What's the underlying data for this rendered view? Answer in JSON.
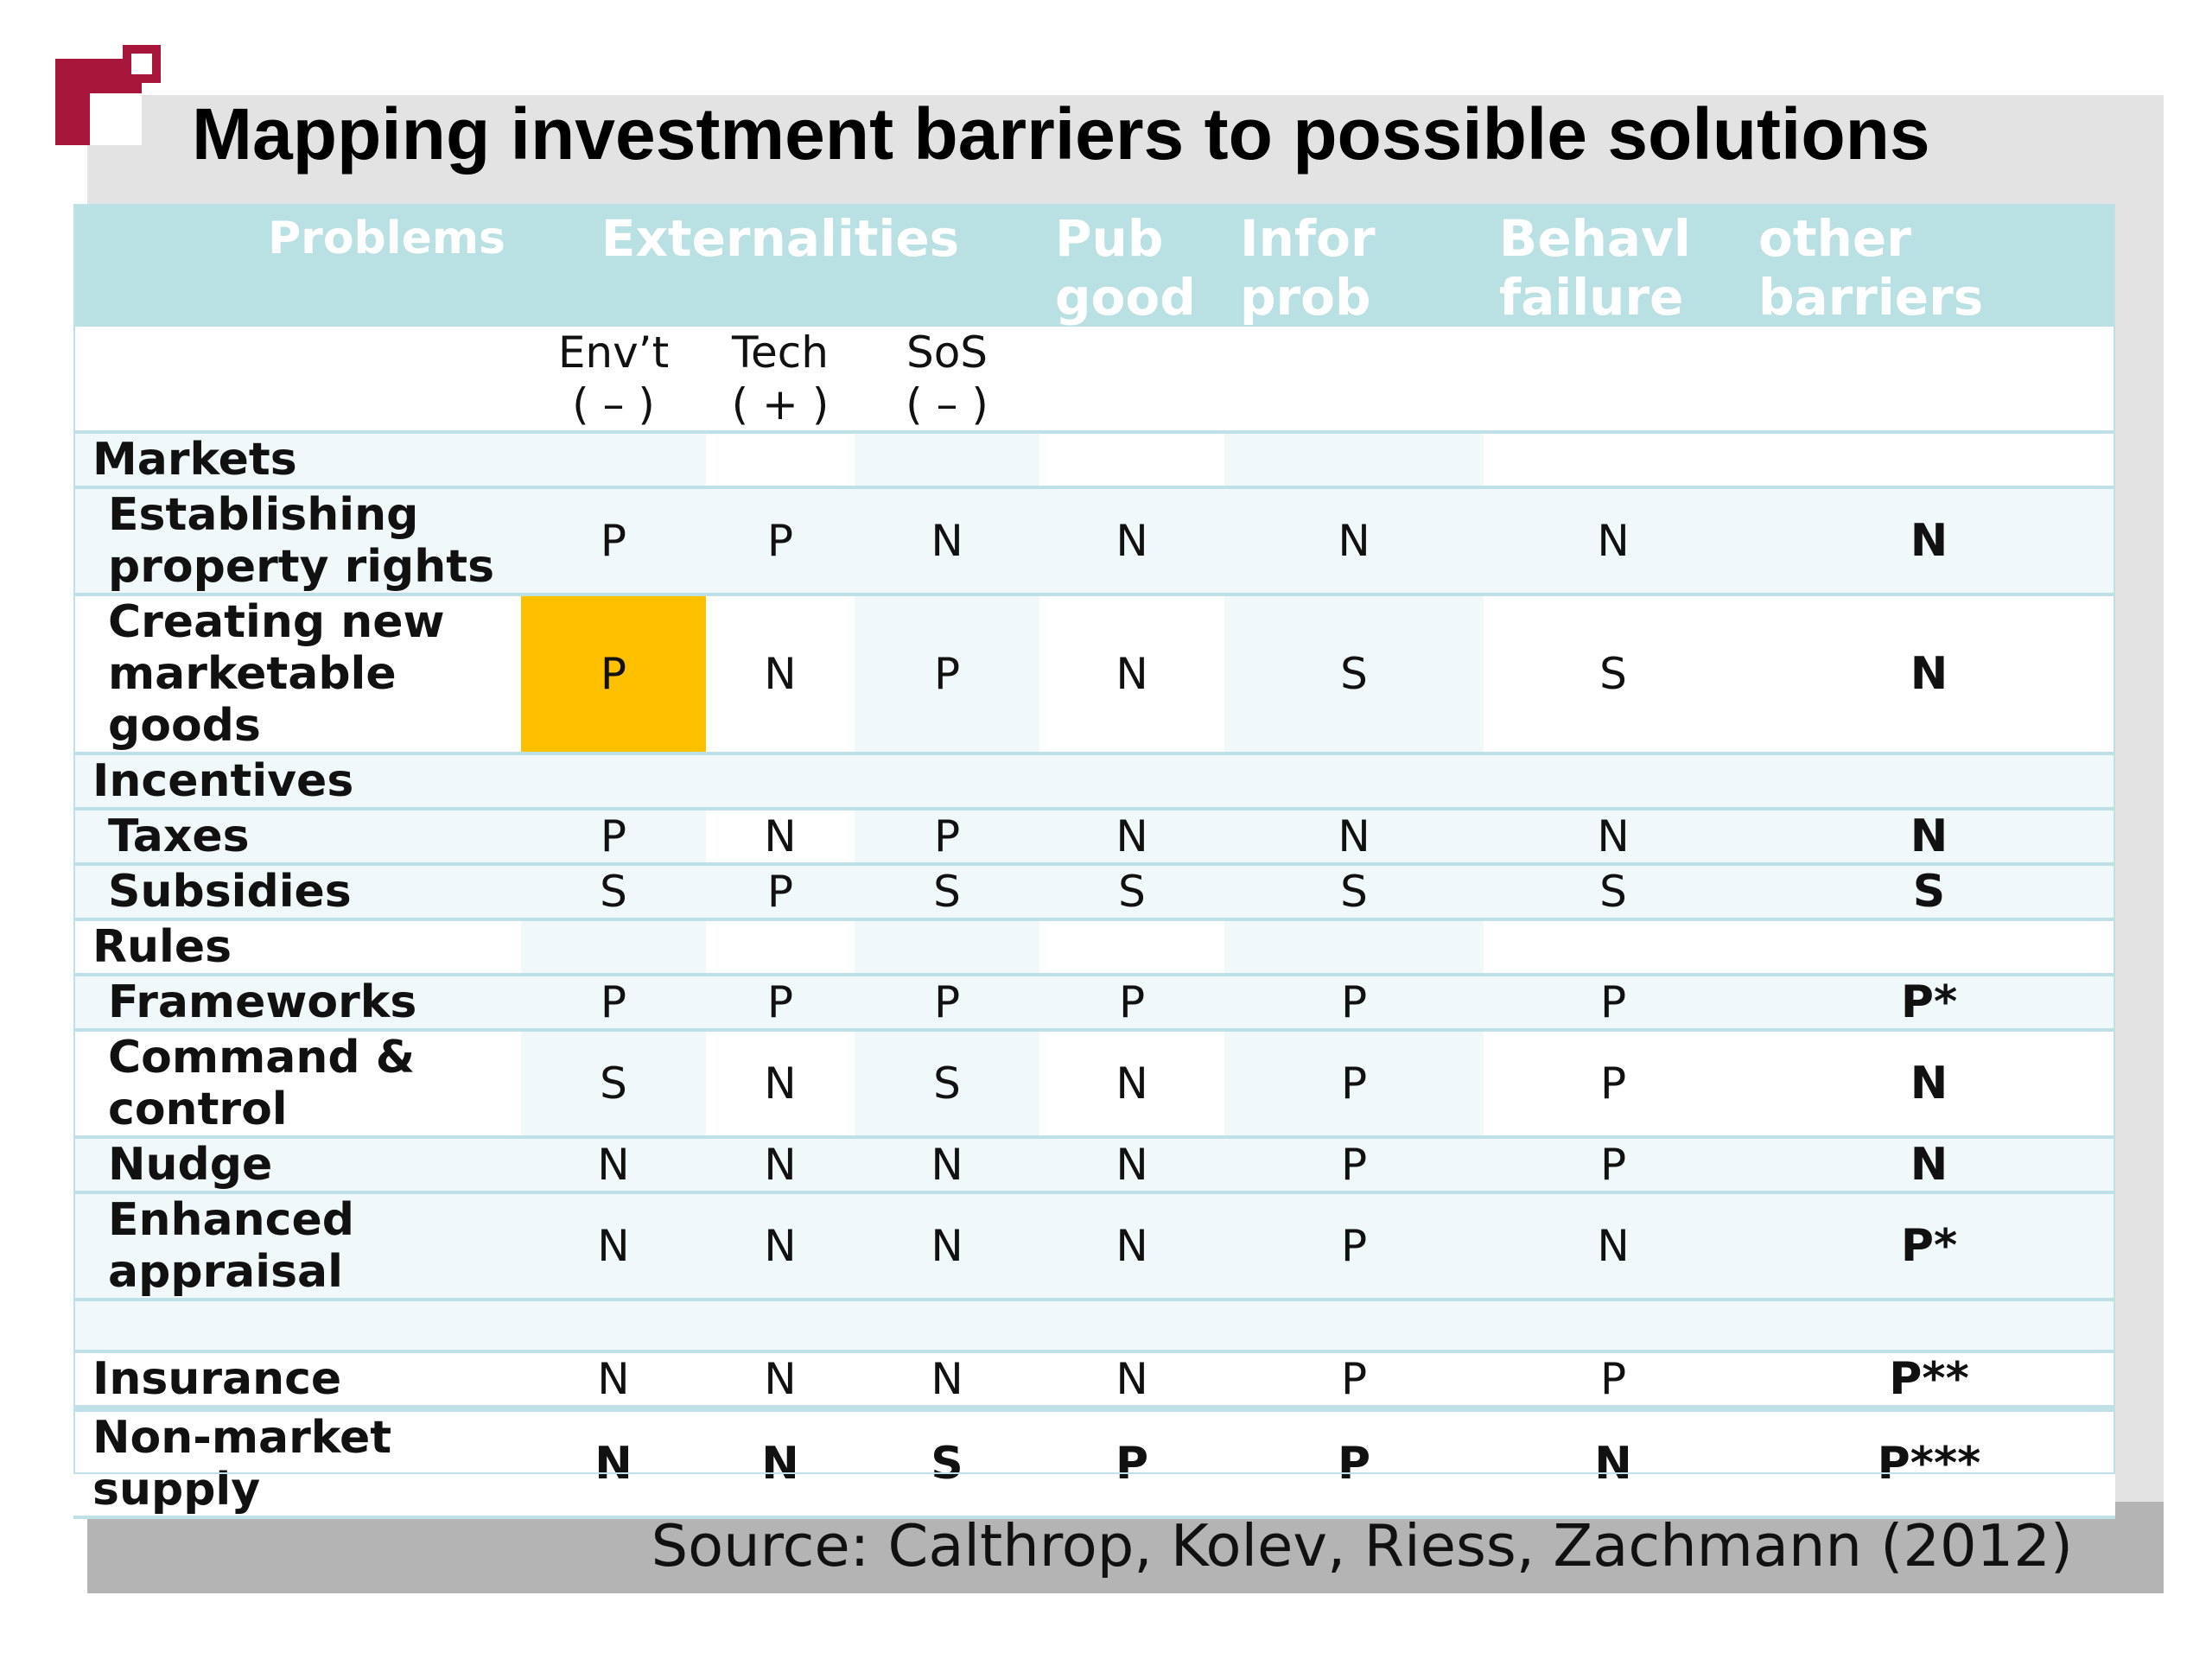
{
  "title": "Mapping investment barriers to possible solutions",
  "source": "Source: Calthrop, Kolev, Riess, Zachmann (2012)",
  "colors": {
    "logo": "#a8153a",
    "header": "#b9e0e3",
    "highlight": "#ffc000",
    "footer": "#b4b4b4"
  },
  "header": {
    "problems": "Problems",
    "externalities": "Externalities",
    "pub_good": "Pub good",
    "infor_prob": "Infor prob",
    "behavl_failure": "Behavl failure",
    "other_barriers": "other barriers"
  },
  "subheader": {
    "envt": "Env’t",
    "envt_sign": "( – )",
    "tech": "Tech",
    "tech_sign": "( + )",
    "sos": "SoS",
    "sos_sign": "( – )"
  },
  "groups": {
    "markets": "Markets",
    "incentives": "Incentives",
    "rules": "Rules"
  },
  "rows": [
    {
      "label": "Establishing property rights",
      "values": [
        "P",
        "P",
        "N",
        "N",
        "N",
        "N",
        "N"
      ]
    },
    {
      "label": "Creating new marketable goods",
      "values": [
        "P",
        "N",
        "P",
        "N",
        "S",
        "S",
        "N"
      ]
    },
    {
      "label": "Taxes",
      "values": [
        "P",
        "N",
        "P",
        "N",
        "N",
        "N",
        "N"
      ]
    },
    {
      "label": "Subsidies",
      "values": [
        "S",
        "P",
        "S",
        "S",
        "S",
        "S",
        "S"
      ]
    },
    {
      "label": "Frameworks",
      "values": [
        "P",
        "P",
        "P",
        "P",
        "P",
        "P",
        "P*"
      ]
    },
    {
      "label": "Command & control",
      "values": [
        "S",
        "N",
        "S",
        "N",
        "P",
        "P",
        "N"
      ]
    },
    {
      "label": "Nudge",
      "values": [
        "N",
        "N",
        "N",
        "N",
        "P",
        "P",
        "N"
      ]
    },
    {
      "label": "Enhanced appraisal",
      "values": [
        "N",
        "N",
        "N",
        "N",
        "P",
        "N",
        "P*"
      ]
    },
    {
      "label": "Insurance",
      "values": [
        "N",
        "N",
        "N",
        "N",
        "P",
        "P",
        "P**"
      ]
    },
    {
      "label": "Non-market supply",
      "values": [
        "N",
        "N",
        "S",
        "P",
        "P",
        "N",
        "P***"
      ]
    }
  ]
}
